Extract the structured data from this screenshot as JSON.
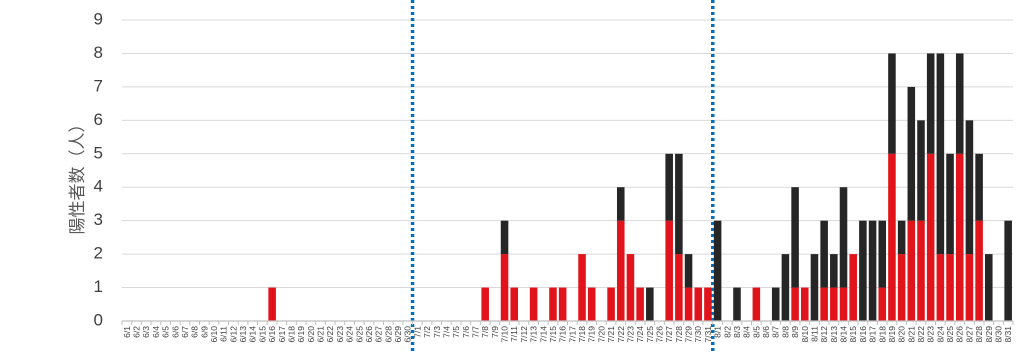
{
  "chart_data": {
    "type": "bar",
    "stacked": true,
    "title": "",
    "xlabel": "",
    "ylabel": "陽性者数（人）",
    "ylim": [
      0,
      9
    ],
    "yticks": [
      0,
      1,
      2,
      3,
      4,
      5,
      6,
      7,
      8,
      9
    ],
    "grid": "horizontal",
    "legend": "none",
    "colors": {
      "series_lower": "#e0141a",
      "series_upper": "#262626",
      "grid": "#d9d9d9",
      "axis": "#bfbfbf",
      "divider": "#0070c0",
      "text": "#404040"
    },
    "dividers_between": [
      [
        "6/30",
        "7/1"
      ],
      [
        "7/31",
        "8/1"
      ]
    ],
    "categories": [
      "6/1",
      "6/2",
      "6/3",
      "6/4",
      "6/5",
      "6/6",
      "6/7",
      "6/8",
      "6/9",
      "6/10",
      "6/11",
      "6/12",
      "6/13",
      "6/14",
      "6/15",
      "6/16",
      "6/17",
      "6/18",
      "6/19",
      "6/20",
      "6/21",
      "6/22",
      "6/23",
      "6/24",
      "6/25",
      "6/26",
      "6/27",
      "6/28",
      "6/29",
      "6/30",
      "7/1",
      "7/2",
      "7/3",
      "7/4",
      "7/5",
      "7/6",
      "7/7",
      "7/8",
      "7/9",
      "7/10",
      "7/11",
      "7/12",
      "7/13",
      "7/14",
      "7/15",
      "7/16",
      "7/17",
      "7/18",
      "7/19",
      "7/20",
      "7/21",
      "7/22",
      "7/23",
      "7/24",
      "7/25",
      "7/26",
      "7/27",
      "7/28",
      "7/29",
      "7/30",
      "7/31",
      "8/1",
      "8/2",
      "8/3",
      "8/4",
      "8/5",
      "8/6",
      "8/7",
      "8/8",
      "8/9",
      "8/10",
      "8/11",
      "8/12",
      "8/13",
      "8/14",
      "8/15",
      "8/16",
      "8/17",
      "8/18",
      "8/19",
      "8/20",
      "8/21",
      "8/22",
      "8/23",
      "8/24",
      "8/25",
      "8/26",
      "8/27",
      "8/28",
      "8/29",
      "8/30",
      "8/31"
    ],
    "series": [
      {
        "values": [
          0,
          0,
          0,
          0,
          0,
          0,
          0,
          0,
          0,
          0,
          0,
          0,
          0,
          0,
          0,
          1,
          0,
          0,
          0,
          0,
          0,
          0,
          0,
          0,
          0,
          0,
          0,
          0,
          0,
          0,
          0,
          0,
          0,
          0,
          0,
          0,
          0,
          1,
          0,
          2,
          1,
          0,
          1,
          0,
          1,
          1,
          0,
          2,
          1,
          0,
          1,
          3,
          2,
          1,
          0,
          0,
          3,
          2,
          1,
          1,
          1,
          0,
          0,
          0,
          0,
          1,
          0,
          0,
          0,
          1,
          1,
          0,
          1,
          1,
          1,
          2,
          0,
          0,
          1,
          5,
          2,
          3,
          3,
          5,
          2,
          2,
          5,
          2,
          3,
          0,
          0,
          0
        ]
      },
      {
        "values": [
          0,
          0,
          0,
          0,
          0,
          0,
          0,
          0,
          0,
          0,
          0,
          0,
          0,
          0,
          0,
          0,
          0,
          0,
          0,
          0,
          0,
          0,
          0,
          0,
          0,
          0,
          0,
          0,
          0,
          0,
          0,
          0,
          0,
          0,
          0,
          0,
          0,
          0,
          0,
          1,
          0,
          0,
          0,
          0,
          0,
          0,
          0,
          0,
          0,
          0,
          0,
          1,
          0,
          0,
          1,
          0,
          2,
          3,
          1,
          0,
          0,
          3,
          0,
          1,
          0,
          0,
          0,
          1,
          2,
          3,
          0,
          2,
          2,
          1,
          3,
          0,
          3,
          3,
          2,
          3,
          1,
          4,
          3,
          3,
          6,
          3,
          3,
          4,
          2,
          2,
          0,
          3
        ]
      }
    ]
  }
}
